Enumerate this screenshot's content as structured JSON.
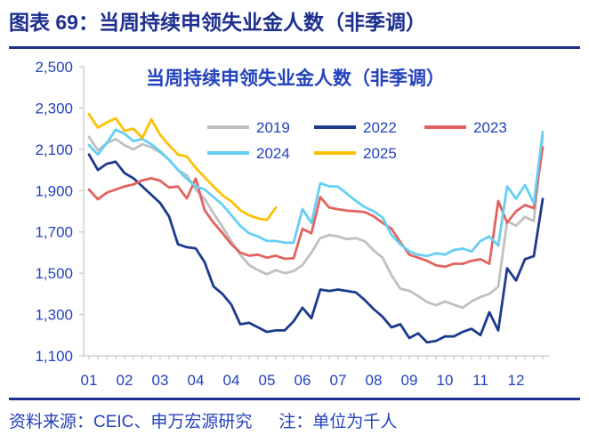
{
  "header": {
    "title": "图表 69：当周持续申领失业金人数（非季调）"
  },
  "footer": {
    "source": "资料来源：CEIC、申万宏源研究",
    "note": "注：单位为千人"
  },
  "colors": {
    "header_text": "#1c2f8f",
    "chart_text": "#2342bd",
    "axis": "#c9c9c9"
  },
  "chart_data": {
    "type": "line",
    "title": "当周持续申领失业金人数（非季调）",
    "unit": "千人",
    "x_axis": {
      "tick_labels": [
        "01",
        "02",
        "03",
        "04",
        "04",
        "05",
        "06",
        "07",
        "08",
        "09",
        "10",
        "11",
        "12"
      ],
      "weeks_per_label": 4,
      "total_weeks": 52
    },
    "y_axis": {
      "min": 1100,
      "max": 2500,
      "step": 200,
      "tick_labels": [
        "1,100",
        "1,300",
        "1,500",
        "1,700",
        "1,900",
        "2,100",
        "2,300",
        "2,500"
      ]
    },
    "legend": {
      "rows": [
        [
          "2019",
          "2022",
          "2023"
        ],
        [
          "2024",
          "2025"
        ]
      ]
    },
    "series": [
      {
        "name": "2019",
        "color": "#c0c0c0",
        "values": [
          2160,
          2095,
          2130,
          2150,
          2120,
          2100,
          2125,
          2110,
          2085,
          2050,
          2000,
          1975,
          1905,
          1860,
          1790,
          1725,
          1655,
          1590,
          1540,
          1515,
          1495,
          1515,
          1500,
          1510,
          1540,
          1600,
          1670,
          1685,
          1678,
          1665,
          1670,
          1655,
          1610,
          1575,
          1490,
          1425,
          1415,
          1390,
          1360,
          1345,
          1363,
          1348,
          1333,
          1363,
          1385,
          1400,
          1435,
          1752,
          1730,
          1773,
          1752,
          2162
        ]
      },
      {
        "name": "2022",
        "color": "#1c3a8e",
        "values": [
          2075,
          2000,
          2030,
          2040,
          1985,
          1960,
          1920,
          1880,
          1840,
          1775,
          1640,
          1626,
          1620,
          1553,
          1436,
          1400,
          1348,
          1253,
          1260,
          1238,
          1216,
          1223,
          1223,
          1267,
          1333,
          1282,
          1421,
          1414,
          1421,
          1414,
          1407,
          1370,
          1326,
          1289,
          1238,
          1253,
          1186,
          1209,
          1165,
          1172,
          1194,
          1194,
          1216,
          1231,
          1200,
          1311,
          1223,
          1524,
          1465,
          1568,
          1583,
          1860
        ]
      },
      {
        "name": "2023",
        "color": "#e2635e",
        "values": [
          1905,
          1858,
          1890,
          1905,
          1920,
          1930,
          1950,
          1960,
          1948,
          1915,
          1920,
          1862,
          1958,
          1805,
          1745,
          1695,
          1640,
          1600,
          1585,
          1590,
          1575,
          1585,
          1570,
          1572,
          1715,
          1693,
          1869,
          1818,
          1810,
          1803,
          1800,
          1796,
          1775,
          1744,
          1715,
          1650,
          1590,
          1575,
          1560,
          1538,
          1531,
          1546,
          1546,
          1560,
          1568,
          1546,
          1850,
          1745,
          1800,
          1830,
          1815,
          2110
        ]
      },
      {
        "name": "2024",
        "color": "#66cef5",
        "values": [
          2120,
          2075,
          2130,
          2195,
          2175,
          2140,
          2150,
          2125,
          2090,
          2050,
          2000,
          1957,
          1920,
          1906,
          1869,
          1832,
          1781,
          1730,
          1693,
          1678,
          1656,
          1656,
          1648,
          1648,
          1811,
          1743,
          1936,
          1921,
          1919,
          1885,
          1850,
          1820,
          1800,
          1770,
          1685,
          1640,
          1606,
          1590,
          1583,
          1597,
          1590,
          1612,
          1619,
          1605,
          1656,
          1678,
          1634,
          1920,
          1861,
          1927,
          1840,
          2184
        ]
      },
      {
        "name": "2025",
        "color": "#fcc003",
        "values": [
          2270,
          2205,
          2230,
          2250,
          2190,
          2200,
          2155,
          2245,
          2170,
          2120,
          2075,
          2065,
          2010,
          1965,
          1920,
          1878,
          1848,
          1805,
          1780,
          1765,
          1758,
          1818
        ]
      }
    ]
  }
}
